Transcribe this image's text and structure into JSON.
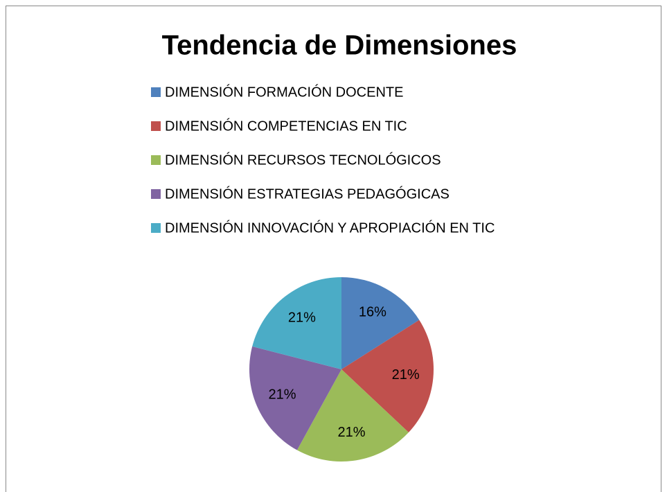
{
  "chart_data": {
    "type": "pie",
    "title": "Tendencia de Dimensiones",
    "categories": [
      "DIMENSIÓN FORMACIÓN DOCENTE",
      "DIMENSIÓN COMPETENCIAS EN TIC",
      "DIMENSIÓN RECURSOS TECNOLÓGICOS",
      "DIMENSIÓN ESTRATEGIAS PEDAGÓGICAS",
      "DIMENSIÓN INNOVACIÓN Y APROPIACIÓN EN TIC"
    ],
    "values": [
      16,
      21,
      21,
      21,
      21
    ],
    "value_labels": [
      "16%",
      "21%",
      "21%",
      "21%",
      "21%"
    ],
    "colors": [
      "#4f81bd",
      "#c0504d",
      "#9bbb59",
      "#8064a2",
      "#4bacc6"
    ],
    "legend": "top"
  }
}
